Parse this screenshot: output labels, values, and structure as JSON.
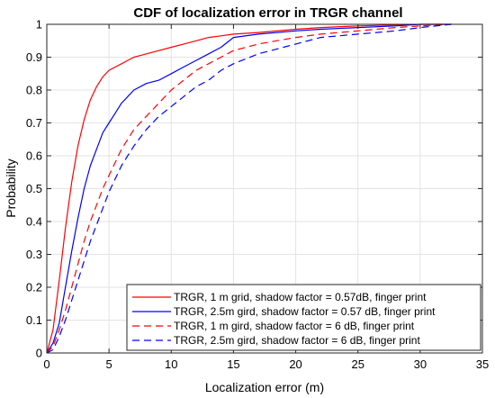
{
  "chart_data": {
    "type": "line",
    "title": "CDF of localization error in TRGR channel",
    "xlabel": "Localization error (m)",
    "ylabel": "Probability",
    "xlim": [
      0,
      35
    ],
    "ylim": [
      0,
      1
    ],
    "xticks": [
      0,
      5,
      10,
      15,
      20,
      25,
      30,
      35
    ],
    "yticks": [
      0,
      0.1,
      0.2,
      0.3,
      0.4,
      0.5,
      0.6,
      0.7,
      0.8,
      0.9,
      1
    ],
    "xtick_labels": [
      "0",
      "5",
      "10",
      "15",
      "20",
      "25",
      "30",
      "35"
    ],
    "ytick_labels": [
      "0",
      "0.1",
      "0.2",
      "0.3",
      "0.4",
      "0.5",
      "0.6",
      "0.7",
      "0.8",
      "0.9",
      "1"
    ],
    "grid": true,
    "legend_position": "bottom-right",
    "series": [
      {
        "name": "TRGR,  1 m grid,   shadow factor = 0.57dB, finger print",
        "color": "#ff0000",
        "dash": "solid",
        "x": [
          0,
          0.5,
          1,
          1.5,
          2,
          2.5,
          3,
          3.5,
          4,
          4.5,
          5,
          5.5,
          6,
          6.5,
          7,
          7.5,
          8,
          9,
          10,
          11,
          12,
          13,
          14,
          15,
          17,
          20,
          22,
          25,
          28,
          30,
          32.5
        ],
        "y": [
          0,
          0.07,
          0.22,
          0.38,
          0.52,
          0.63,
          0.71,
          0.77,
          0.81,
          0.84,
          0.86,
          0.87,
          0.88,
          0.89,
          0.9,
          0.905,
          0.91,
          0.92,
          0.93,
          0.94,
          0.95,
          0.96,
          0.965,
          0.97,
          0.975,
          0.985,
          0.99,
          0.995,
          0.998,
          1,
          1
        ]
      },
      {
        "name": "TRGR,  2.5m gird,   shadow factor = 0.57 dB,  finger print",
        "color": "#0000ff",
        "dash": "solid",
        "x": [
          0,
          0.5,
          1,
          1.5,
          2,
          2.5,
          3,
          3.5,
          4,
          4.5,
          5,
          5.5,
          6,
          6.5,
          7,
          8,
          9,
          10,
          11,
          12,
          13,
          14,
          15,
          17,
          20,
          22,
          25,
          28,
          30,
          32.5
        ],
        "y": [
          0,
          0.03,
          0.09,
          0.2,
          0.31,
          0.41,
          0.5,
          0.57,
          0.62,
          0.67,
          0.7,
          0.73,
          0.76,
          0.78,
          0.8,
          0.82,
          0.83,
          0.85,
          0.87,
          0.89,
          0.91,
          0.93,
          0.96,
          0.97,
          0.98,
          0.985,
          0.99,
          0.995,
          1,
          1
        ]
      },
      {
        "name": "TRGR,  1 m gird,    shadow factor = 6 dB, finger print",
        "color": "#ff0000",
        "dash": "dashed",
        "x": [
          0,
          0.5,
          1,
          1.5,
          2,
          2.5,
          3,
          3.5,
          4,
          4.5,
          5,
          5.5,
          6,
          6.5,
          7,
          8,
          9,
          10,
          11,
          12,
          13,
          14,
          15,
          17,
          20,
          22,
          25,
          28,
          30,
          32.5
        ],
        "y": [
          0,
          0.02,
          0.07,
          0.13,
          0.2,
          0.27,
          0.34,
          0.4,
          0.45,
          0.5,
          0.54,
          0.58,
          0.62,
          0.65,
          0.68,
          0.72,
          0.76,
          0.8,
          0.83,
          0.86,
          0.88,
          0.9,
          0.92,
          0.94,
          0.96,
          0.97,
          0.98,
          0.99,
          0.995,
          1
        ]
      },
      {
        "name": "TRGR,  2.5m gird,  shadow factor = 6 dB, finger print",
        "color": "#0000ff",
        "dash": "dashed",
        "x": [
          0,
          0.5,
          1,
          1.5,
          2,
          2.5,
          3,
          3.5,
          4,
          4.5,
          5,
          5.5,
          6,
          6.5,
          7,
          8,
          9,
          10,
          11,
          12,
          13,
          14,
          15,
          17,
          20,
          22,
          25,
          28,
          30,
          32.5
        ],
        "y": [
          0,
          0.01,
          0.05,
          0.1,
          0.16,
          0.22,
          0.28,
          0.34,
          0.39,
          0.44,
          0.49,
          0.53,
          0.57,
          0.6,
          0.63,
          0.68,
          0.72,
          0.75,
          0.78,
          0.81,
          0.83,
          0.86,
          0.88,
          0.91,
          0.94,
          0.96,
          0.97,
          0.98,
          0.99,
          1
        ]
      }
    ]
  }
}
